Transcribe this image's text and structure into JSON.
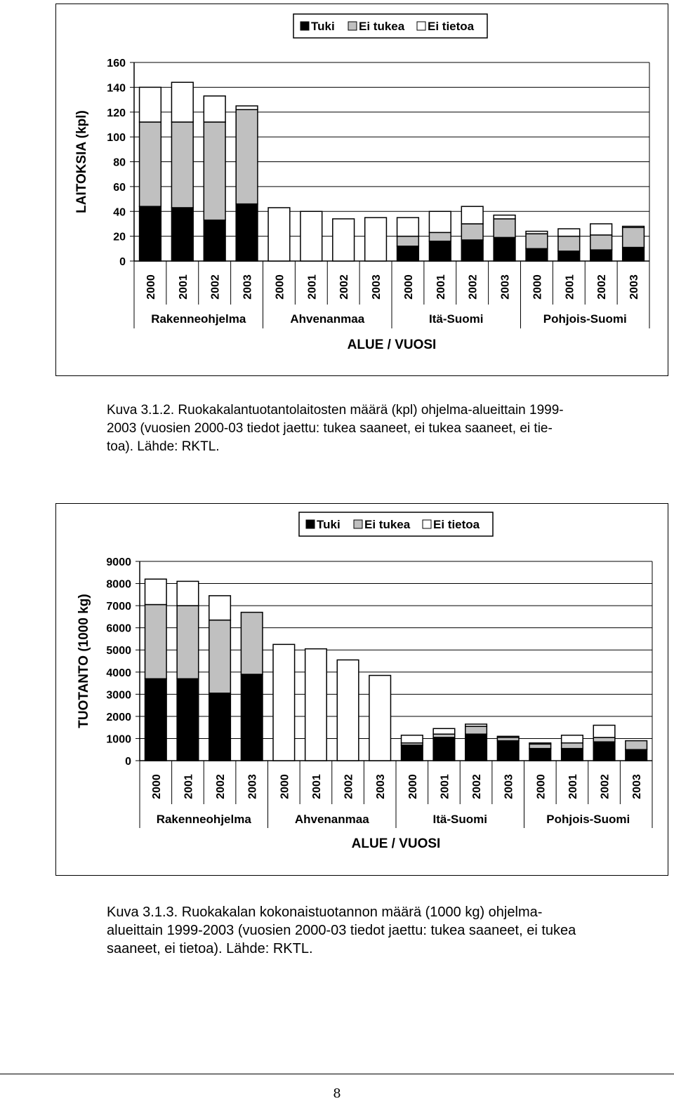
{
  "chart_data": [
    {
      "type": "bar",
      "stacked": true,
      "ylabel": "LAITOKSIA (kpl)",
      "xlabel": "ALUE / VUOSI",
      "ylim": [
        0,
        160
      ],
      "yticks": [
        0,
        20,
        40,
        60,
        80,
        100,
        120,
        140,
        160
      ],
      "grid": true,
      "legend_position": "top",
      "groups": [
        "Rakenneohjelma",
        "Ahvenanmaa",
        "Itä-Suomi",
        "Pohjois-Suomi"
      ],
      "categories": [
        "2000",
        "2001",
        "2002",
        "2003",
        "2000",
        "2001",
        "2002",
        "2003",
        "2000",
        "2001",
        "2002",
        "2003",
        "2000",
        "2001",
        "2002",
        "2003"
      ],
      "series": [
        {
          "name": "Tuki",
          "color": "#000000",
          "values": [
            44,
            43,
            33,
            46,
            0,
            0,
            0,
            0,
            12,
            16,
            17,
            19,
            10,
            8,
            9,
            11
          ]
        },
        {
          "name": "Ei tukea",
          "color": "#c0c0c0",
          "values": [
            68,
            69,
            79,
            76,
            0,
            0,
            0,
            0,
            8,
            7,
            13,
            15,
            12,
            12,
            12,
            16
          ]
        },
        {
          "name": "Ei tietoa",
          "color": "#ffffff",
          "values": [
            28,
            32,
            21,
            3,
            43,
            40,
            34,
            35,
            15,
            17,
            14,
            3,
            2,
            6,
            9,
            1
          ]
        }
      ]
    },
    {
      "type": "bar",
      "stacked": true,
      "ylabel": "TUOTANTO (1000 kg)",
      "xlabel": "ALUE / VUOSI",
      "ylim": [
        0,
        9000
      ],
      "yticks": [
        0,
        1000,
        2000,
        3000,
        4000,
        5000,
        6000,
        7000,
        8000,
        9000
      ],
      "grid": true,
      "legend_position": "top",
      "groups": [
        "Rakenneohjelma",
        "Ahvenanmaa",
        "Itä-Suomi",
        "Pohjois-Suomi"
      ],
      "categories": [
        "2000",
        "2001",
        "2002",
        "2003",
        "2000",
        "2001",
        "2002",
        "2003",
        "2000",
        "2001",
        "2002",
        "2003",
        "2000",
        "2001",
        "2002",
        "2003"
      ],
      "series": [
        {
          "name": "Tuki",
          "color": "#000000",
          "values": [
            3700,
            3700,
            3050,
            3900,
            0,
            0,
            0,
            0,
            700,
            1050,
            1200,
            900,
            550,
            550,
            850,
            500
          ]
        },
        {
          "name": "Ei tukea",
          "color": "#c0c0c0",
          "values": [
            3350,
            3300,
            3300,
            2800,
            0,
            0,
            0,
            0,
            100,
            150,
            350,
            150,
            200,
            250,
            200,
            400
          ]
        },
        {
          "name": "Ei tietoa",
          "color": "#ffffff",
          "values": [
            1150,
            1100,
            1100,
            0,
            5250,
            5050,
            4550,
            3850,
            350,
            250,
            100,
            50,
            50,
            350,
            550,
            0
          ]
        }
      ]
    }
  ],
  "captions": {
    "caption1_lines": [
      "Kuva 3.1.2. Ruokakalantuotantolaitosten määrä (kpl) ohjelma-alueittain 1999-",
      "2003 (vuosien 2000-03 tiedot jaettu: tukea saaneet, ei tukea saaneet, ei tie-",
      "toa). Lähde: RKTL."
    ],
    "caption2_lines": [
      "Kuva 3.1.3. Ruokakalan kokonaistuotannon määrä (1000 kg) ohjelma-",
      "alueittain 1999-2003 (vuosien 2000-03 tiedot jaettu: tukea saaneet, ei tukea",
      "saaneet, ei tietoa). Lähde: RKTL."
    ]
  },
  "page_number": "8"
}
